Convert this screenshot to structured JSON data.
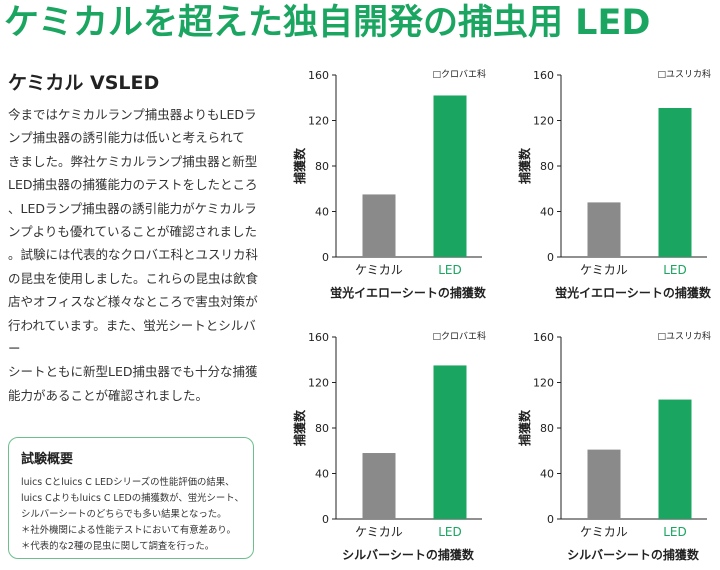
{
  "headline": "ケミカルを超えた独自開発の捕虫用 LED",
  "subtitle": "ケミカル VSLED",
  "body_lines": [
    "今まではケミカルランプ捕虫器よりもLEDラ",
    "ンプ捕虫器の誘引能力は低いと考えられて",
    "きました。弊社ケミカルランプ捕虫器と新型",
    "LED捕虫器の捕獲能力のテストをしたところ",
    "、LEDランプ捕虫器の誘引能力がケミカルラ",
    "ンプよりも優れていることが確認されました",
    "。試験には代表的なクロバエ科とユスリカ科",
    "の昆虫を使用しました。これらの昆虫は飲食",
    "店やオフィスなど様々なところで害虫対策が",
    "行われています。また、蛍光シートとシルバー",
    "シートともに新型LED捕虫器でも十分な捕獲",
    "能力があることが確認されました。"
  ],
  "box": {
    "title": "試験概要",
    "lines": [
      "luics Cとluics C LEDシリーズの性能評価の結果、",
      "luics Cよりもluics C LEDの捕獲数が、蛍光シート、",
      "シルバーシートのどちらでも多い結果となった。",
      "＊社外機関による性能テストにおいて有意差あり。",
      "＊代表的な2種の昆虫に関して調査を行った。"
    ]
  },
  "colors": {
    "accent": "#1aa560",
    "chemical_bar": "#8a8a8a",
    "led_bar": "#1aa560"
  },
  "chart_data": [
    {
      "type": "bar",
      "categories": [
        "ケミカル",
        "LED"
      ],
      "values": [
        55,
        142
      ],
      "legend": "□クロバエ科",
      "ylabel": "捕獲数",
      "xlabel": "蛍光イエローシートの捕獲数",
      "ylim": [
        0,
        160
      ],
      "yticks": [
        0,
        40,
        80,
        120,
        160
      ]
    },
    {
      "type": "bar",
      "categories": [
        "ケミカル",
        "LED"
      ],
      "values": [
        48,
        131
      ],
      "legend": "□ユスリカ科",
      "ylabel": "捕獲数",
      "xlabel": "蛍光イエローシートの捕獲数",
      "ylim": [
        0,
        160
      ],
      "yticks": [
        0,
        40,
        80,
        120,
        160
      ]
    },
    {
      "type": "bar",
      "categories": [
        "ケミカル",
        "LED"
      ],
      "values": [
        58,
        135
      ],
      "legend": "□クロバエ科",
      "ylabel": "捕獲数",
      "xlabel": "シルバーシートの捕獲数",
      "ylim": [
        0,
        160
      ],
      "yticks": [
        0,
        40,
        80,
        120,
        160
      ]
    },
    {
      "type": "bar",
      "categories": [
        "ケミカル",
        "LED"
      ],
      "values": [
        61,
        105
      ],
      "legend": "□ユスリカ科",
      "ylabel": "捕獲数",
      "xlabel": "シルバーシートの捕獲数",
      "ylim": [
        0,
        160
      ],
      "yticks": [
        0,
        40,
        80,
        120,
        160
      ]
    }
  ]
}
